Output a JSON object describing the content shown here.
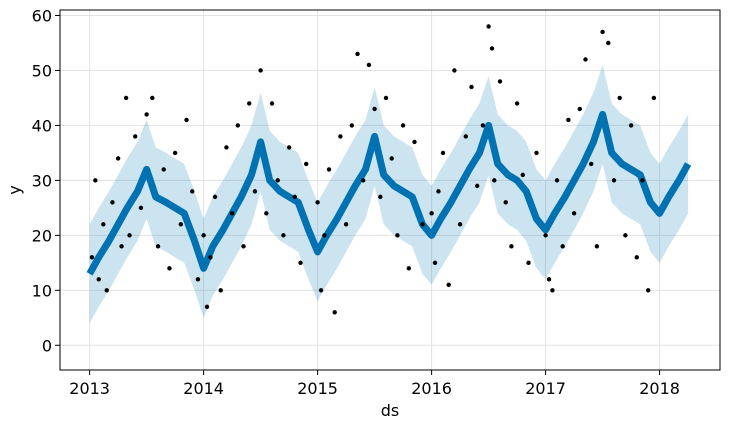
{
  "chart_data": {
    "type": "forecast",
    "xlabel": "ds",
    "ylabel": "y",
    "xlim": [
      2012.74,
      2018.53
    ],
    "ylim": [
      -4.5,
      61
    ],
    "xticks": [
      2013,
      2014,
      2015,
      2016,
      2017,
      2018
    ],
    "yticks": [
      0,
      10,
      20,
      30,
      40,
      50,
      60
    ],
    "grid": true,
    "x": [
      2013,
      2013.08,
      2013.17,
      2013.25,
      2013.33,
      2013.42,
      2013.5,
      2013.58,
      2013.67,
      2013.75,
      2013.83,
      2013.92,
      2014,
      2014.08,
      2014.17,
      2014.25,
      2014.33,
      2014.42,
      2014.5,
      2014.58,
      2014.67,
      2014.75,
      2014.83,
      2014.92,
      2015,
      2015.08,
      2015.17,
      2015.25,
      2015.33,
      2015.42,
      2015.5,
      2015.58,
      2015.67,
      2015.75,
      2015.83,
      2015.92,
      2016,
      2016.08,
      2016.17,
      2016.25,
      2016.33,
      2016.42,
      2016.5,
      2016.58,
      2016.67,
      2016.75,
      2016.83,
      2016.92,
      2017,
      2017.08,
      2017.17,
      2017.25,
      2017.33,
      2017.42,
      2017.5,
      2017.58,
      2017.67,
      2017.75,
      2017.83,
      2017.92,
      2018,
      2018.08,
      2018.17,
      2018.25
    ],
    "series": [
      {
        "color": "#0072B2",
        "values": [
          13,
          16,
          19,
          22,
          25,
          28,
          32,
          27,
          26,
          25,
          24,
          19,
          14,
          18,
          21,
          24,
          27,
          31,
          37,
          30,
          28,
          27,
          26,
          21,
          17,
          20,
          23,
          26,
          29,
          32,
          38,
          31,
          29,
          28,
          27,
          22,
          20,
          23,
          26,
          29,
          32,
          35,
          40,
          33,
          31,
          30,
          28,
          23,
          21,
          24,
          27,
          30,
          33,
          37,
          42,
          35,
          33,
          32,
          31,
          26,
          24,
          27,
          30,
          33
        ]
      }
    ],
    "band_color": "#0072B2",
    "lower": [
      4,
      7,
      10,
      13,
      16,
      19,
      23,
      18,
      17,
      16,
      15,
      10,
      5,
      9,
      12,
      15,
      18,
      22,
      28,
      21,
      19,
      18,
      17,
      12,
      8,
      11,
      14,
      17,
      20,
      23,
      29,
      22,
      20,
      19,
      18,
      13,
      11,
      14,
      17,
      20,
      23,
      26,
      31,
      24,
      22,
      21,
      19,
      14,
      12,
      15,
      18,
      21,
      24,
      28,
      33,
      26,
      24,
      23,
      22,
      17,
      15,
      18,
      21,
      24
    ],
    "upper": [
      22,
      25,
      28,
      31,
      34,
      37,
      41,
      36,
      35,
      34,
      33,
      28,
      23,
      27,
      30,
      33,
      36,
      40,
      46,
      39,
      37,
      36,
      35,
      30,
      26,
      29,
      32,
      35,
      38,
      41,
      47,
      40,
      38,
      37,
      36,
      31,
      29,
      32,
      35,
      38,
      41,
      44,
      49,
      42,
      40,
      39,
      37,
      32,
      30,
      33,
      36,
      39,
      42,
      46,
      51,
      44,
      42,
      41,
      40,
      35,
      33,
      36,
      39,
      42
    ],
    "points": {
      "color": "#000000",
      "x": [
        2013.02,
        2013.05,
        2013.08,
        2013.12,
        2013.15,
        2013.2,
        2013.25,
        2013.28,
        2013.32,
        2013.35,
        2013.4,
        2013.45,
        2013.5,
        2013.55,
        2013.6,
        2013.65,
        2013.7,
        2013.75,
        2013.8,
        2013.85,
        2013.9,
        2013.95,
        2014,
        2014.03,
        2014.06,
        2014.1,
        2014.15,
        2014.2,
        2014.25,
        2014.3,
        2014.35,
        2014.4,
        2014.45,
        2014.5,
        2014.55,
        2014.6,
        2014.65,
        2014.7,
        2014.75,
        2014.8,
        2014.85,
        2014.9,
        2015,
        2015.03,
        2015.06,
        2015.1,
        2015.15,
        2015.2,
        2015.25,
        2015.3,
        2015.35,
        2015.4,
        2015.45,
        2015.5,
        2015.55,
        2015.6,
        2015.65,
        2015.7,
        2015.75,
        2015.8,
        2015.85,
        2015.92,
        2016,
        2016.03,
        2016.06,
        2016.1,
        2016.15,
        2016.2,
        2016.25,
        2016.3,
        2016.35,
        2016.4,
        2016.45,
        2016.5,
        2016.53,
        2016.55,
        2016.6,
        2016.65,
        2016.7,
        2016.75,
        2016.8,
        2016.85,
        2016.92,
        2017,
        2017.03,
        2017.06,
        2017.1,
        2017.15,
        2017.2,
        2017.25,
        2017.3,
        2017.35,
        2017.4,
        2017.45,
        2017.5,
        2017.55,
        2017.6,
        2017.65,
        2017.7,
        2017.75,
        2017.8,
        2017.85,
        2017.9,
        2017.95
      ],
      "values": [
        16,
        30,
        12,
        22,
        10,
        26,
        34,
        18,
        45,
        20,
        38,
        25,
        42,
        45,
        18,
        32,
        14,
        35,
        22,
        41,
        28,
        12,
        20,
        7,
        16,
        27,
        10,
        36,
        24,
        40,
        18,
        44,
        28,
        50,
        24,
        44,
        30,
        20,
        36,
        27,
        15,
        33,
        26,
        10,
        20,
        32,
        6,
        38,
        22,
        40,
        53,
        30,
        51,
        43,
        27,
        45,
        34,
        20,
        40,
        14,
        37,
        22,
        24,
        15,
        28,
        35,
        11,
        50,
        22,
        38,
        47,
        29,
        40,
        58,
        54,
        30,
        48,
        26,
        18,
        44,
        31,
        15,
        35,
        20,
        12,
        10,
        30,
        18,
        41,
        24,
        43,
        52,
        33,
        18,
        57,
        55,
        30,
        45,
        20,
        40,
        16,
        30,
        10,
        45
      ]
    }
  }
}
